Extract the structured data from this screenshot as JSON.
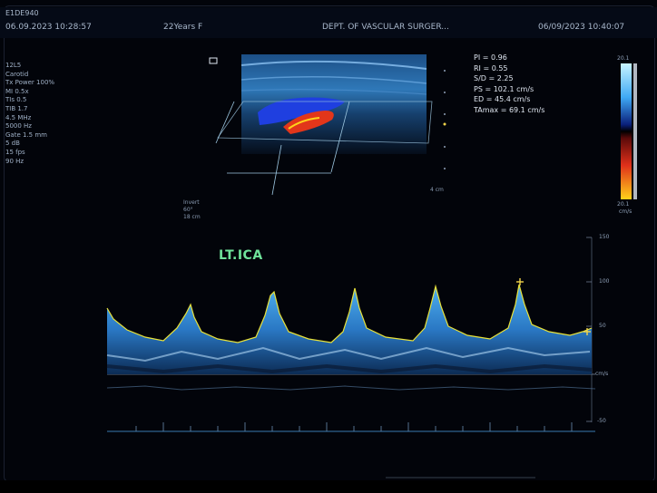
{
  "header": {
    "line1_left": "E1DE940",
    "datetime_left": "06.09.2023 10:28:57",
    "patient": "22Years F",
    "department": "DEPT. OF VASCULAR SURGER...",
    "datetime_right": "06/09/2023 10:40:07"
  },
  "params": [
    "12L5",
    "Carotid",
    "Tx Power 100%",
    "MI 0.5x",
    "TIs 0.5",
    "TIB 1.7",
    "4.5 MHz",
    "5000 Hz",
    "Gate 1.5 mm",
    "5 dB",
    "15 fps",
    "90 Hz"
  ],
  "measurements": {
    "pi": "PI = 0.96",
    "ri": "RI = 0.55",
    "sd": "S/D = 2.25",
    "ps": "PS = 102.1 cm/s",
    "ed": "ED = 45.4 cm/s",
    "tamax": "TAmax = 69.1 cm/s"
  },
  "vessel_label": "LT.ICA",
  "color_scale": {
    "top": "20.1",
    "bottom": "20.1",
    "unit": "cm/s"
  },
  "doppler_scale": {
    "tick1": "150",
    "tick2": "100",
    "tick3": "50",
    "baseline": "cm/s",
    "tick4": "-50"
  },
  "small_labels": {
    "bmode_depth": "4 cm",
    "angle_1": "Invert",
    "angle_2": "60°",
    "angle_3": "18 cm"
  },
  "colors": {
    "label_green": "#6fe39a",
    "trace_yellow": "#e8e23a",
    "spectrum_blue": "#2e8fd6",
    "cursor_yellow": "#f2d44a"
  }
}
